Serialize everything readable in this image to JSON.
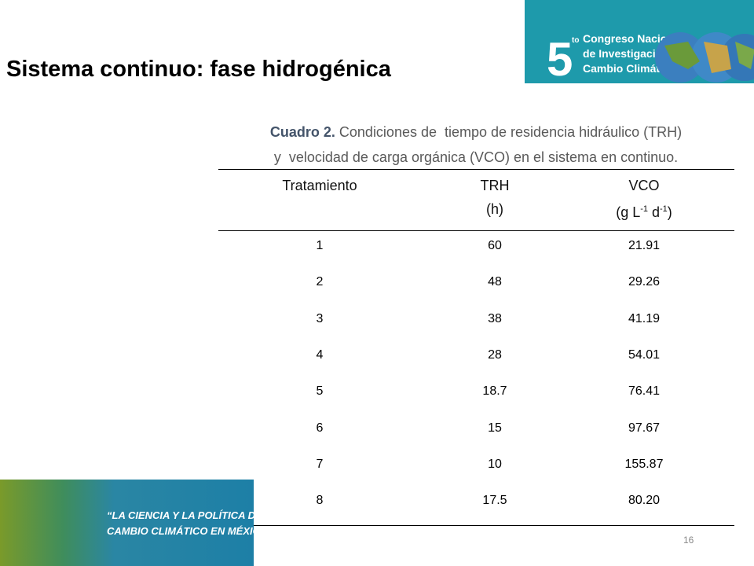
{
  "header": {
    "title": "Sistema continuo: fase hidrogénica",
    "logo": {
      "number": "5",
      "ordinal": "to",
      "lines": [
        "Congreso Nacional",
        "de Investigación en",
        "Cambio Climático"
      ]
    }
  },
  "caption": {
    "label": "Cuadro 2.",
    "lines": [
      "Condiciones de  tiempo de residencia hidráulico (TRH)",
      "y  velocidad de carga orgánica (VCO) en el sistema en continuo."
    ]
  },
  "table": {
    "columns": [
      {
        "line1": "Tratamiento",
        "line2": []
      },
      {
        "line1": "TRH",
        "line2": [
          "(h)"
        ]
      },
      {
        "line1": "VCO",
        "line2": [
          "(g L",
          "-1",
          " d",
          "-1",
          ")"
        ]
      }
    ],
    "rows": [
      [
        "1",
        "60",
        "21.91"
      ],
      [
        "2",
        "48",
        "29.26"
      ],
      [
        "3",
        "38",
        "41.19"
      ],
      [
        "4",
        "28",
        "54.01"
      ],
      [
        "5",
        "18.7",
        "76.41"
      ],
      [
        "6",
        "15",
        "97.67"
      ],
      [
        "7",
        "10",
        "155.87"
      ],
      [
        "8",
        "17.5",
        "80.20"
      ]
    ]
  },
  "banner": {
    "lines": [
      "“LA CIENCIA Y LA POLÍTICA DEL",
      "CAMBIO CLIMÁTICO EN MÉXICO”"
    ]
  },
  "footer": {
    "page": "16"
  }
}
